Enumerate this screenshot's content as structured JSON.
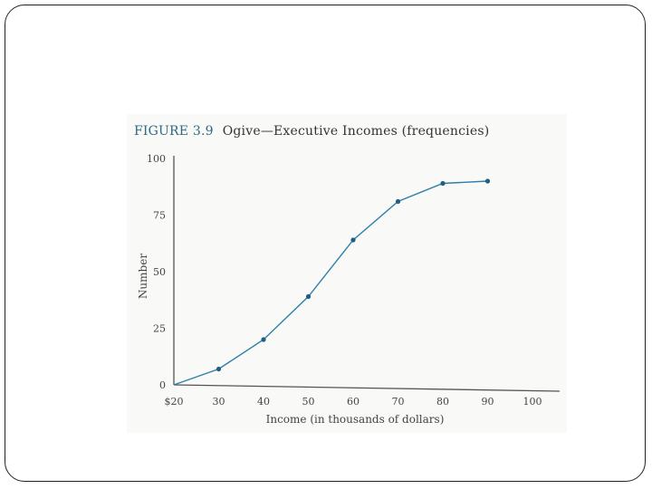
{
  "figure": {
    "label": "FIGURE 3.9",
    "caption": "Ogive—Executive Incomes (frequencies)"
  },
  "chart_data": {
    "type": "line",
    "title": "Ogive—Executive Incomes (frequencies)",
    "xlabel": "Income (in thousands of dollars)",
    "ylabel": "Number",
    "xlim": [
      20,
      105
    ],
    "ylim": [
      0,
      100
    ],
    "x_ticks": [
      20,
      30,
      40,
      50,
      60,
      70,
      80,
      90,
      100
    ],
    "x_tick_labels": [
      "$20",
      "30",
      "40",
      "50",
      "60",
      "70",
      "80",
      "90",
      "100"
    ],
    "y_ticks": [
      0,
      25,
      50,
      75,
      100
    ],
    "y_tick_labels": [
      "0",
      "25",
      "50",
      "75",
      "100"
    ],
    "grid": false,
    "series": [
      {
        "x": [
          20,
          30,
          40,
          50,
          60,
          70,
          80,
          90
        ],
        "y": [
          0,
          7,
          20,
          39,
          64,
          81,
          89,
          90
        ],
        "color": "#2f7fa8"
      }
    ]
  }
}
